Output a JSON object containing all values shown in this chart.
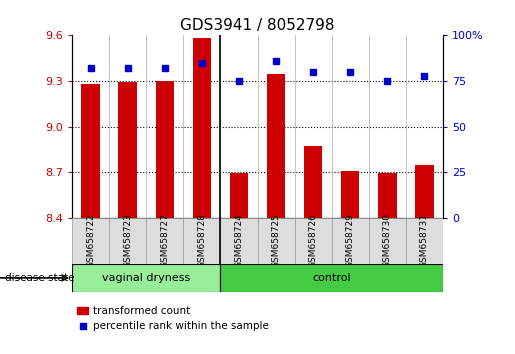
{
  "title": "GDS3941 / 8052798",
  "samples": [
    "GSM658722",
    "GSM658723",
    "GSM658727",
    "GSM658728",
    "GSM658724",
    "GSM658725",
    "GSM658726",
    "GSM658729",
    "GSM658730",
    "GSM658731"
  ],
  "red_values": [
    9.28,
    9.29,
    9.3,
    9.585,
    8.695,
    9.345,
    8.87,
    8.71,
    8.695,
    8.75
  ],
  "blue_values": [
    82,
    82,
    82,
    85,
    75,
    86,
    80,
    80,
    75,
    78
  ],
  "ylim_left": [
    8.4,
    9.6
  ],
  "ylim_right": [
    0,
    100
  ],
  "yticks_left": [
    8.4,
    8.7,
    9.0,
    9.3,
    9.6
  ],
  "yticks_right": [
    0,
    25,
    50,
    75,
    100
  ],
  "group1_count": 4,
  "group2_count": 6,
  "group1_label": "vaginal dryness",
  "group2_label": "control",
  "group_row_label": "disease state",
  "bar_color": "#cc0000",
  "dot_color": "#0000cc",
  "group1_color": "#99ee99",
  "group2_color": "#44cc44",
  "legend_bar_label": "transformed count",
  "legend_dot_label": "percentile rank within the sample",
  "base_value": 8.4,
  "dotted_grid_lines": [
    8.7,
    9.0,
    9.3
  ],
  "background_color": "#ffffff",
  "tick_label_color_left": "#cc0000",
  "tick_label_color_right": "#0000cc"
}
